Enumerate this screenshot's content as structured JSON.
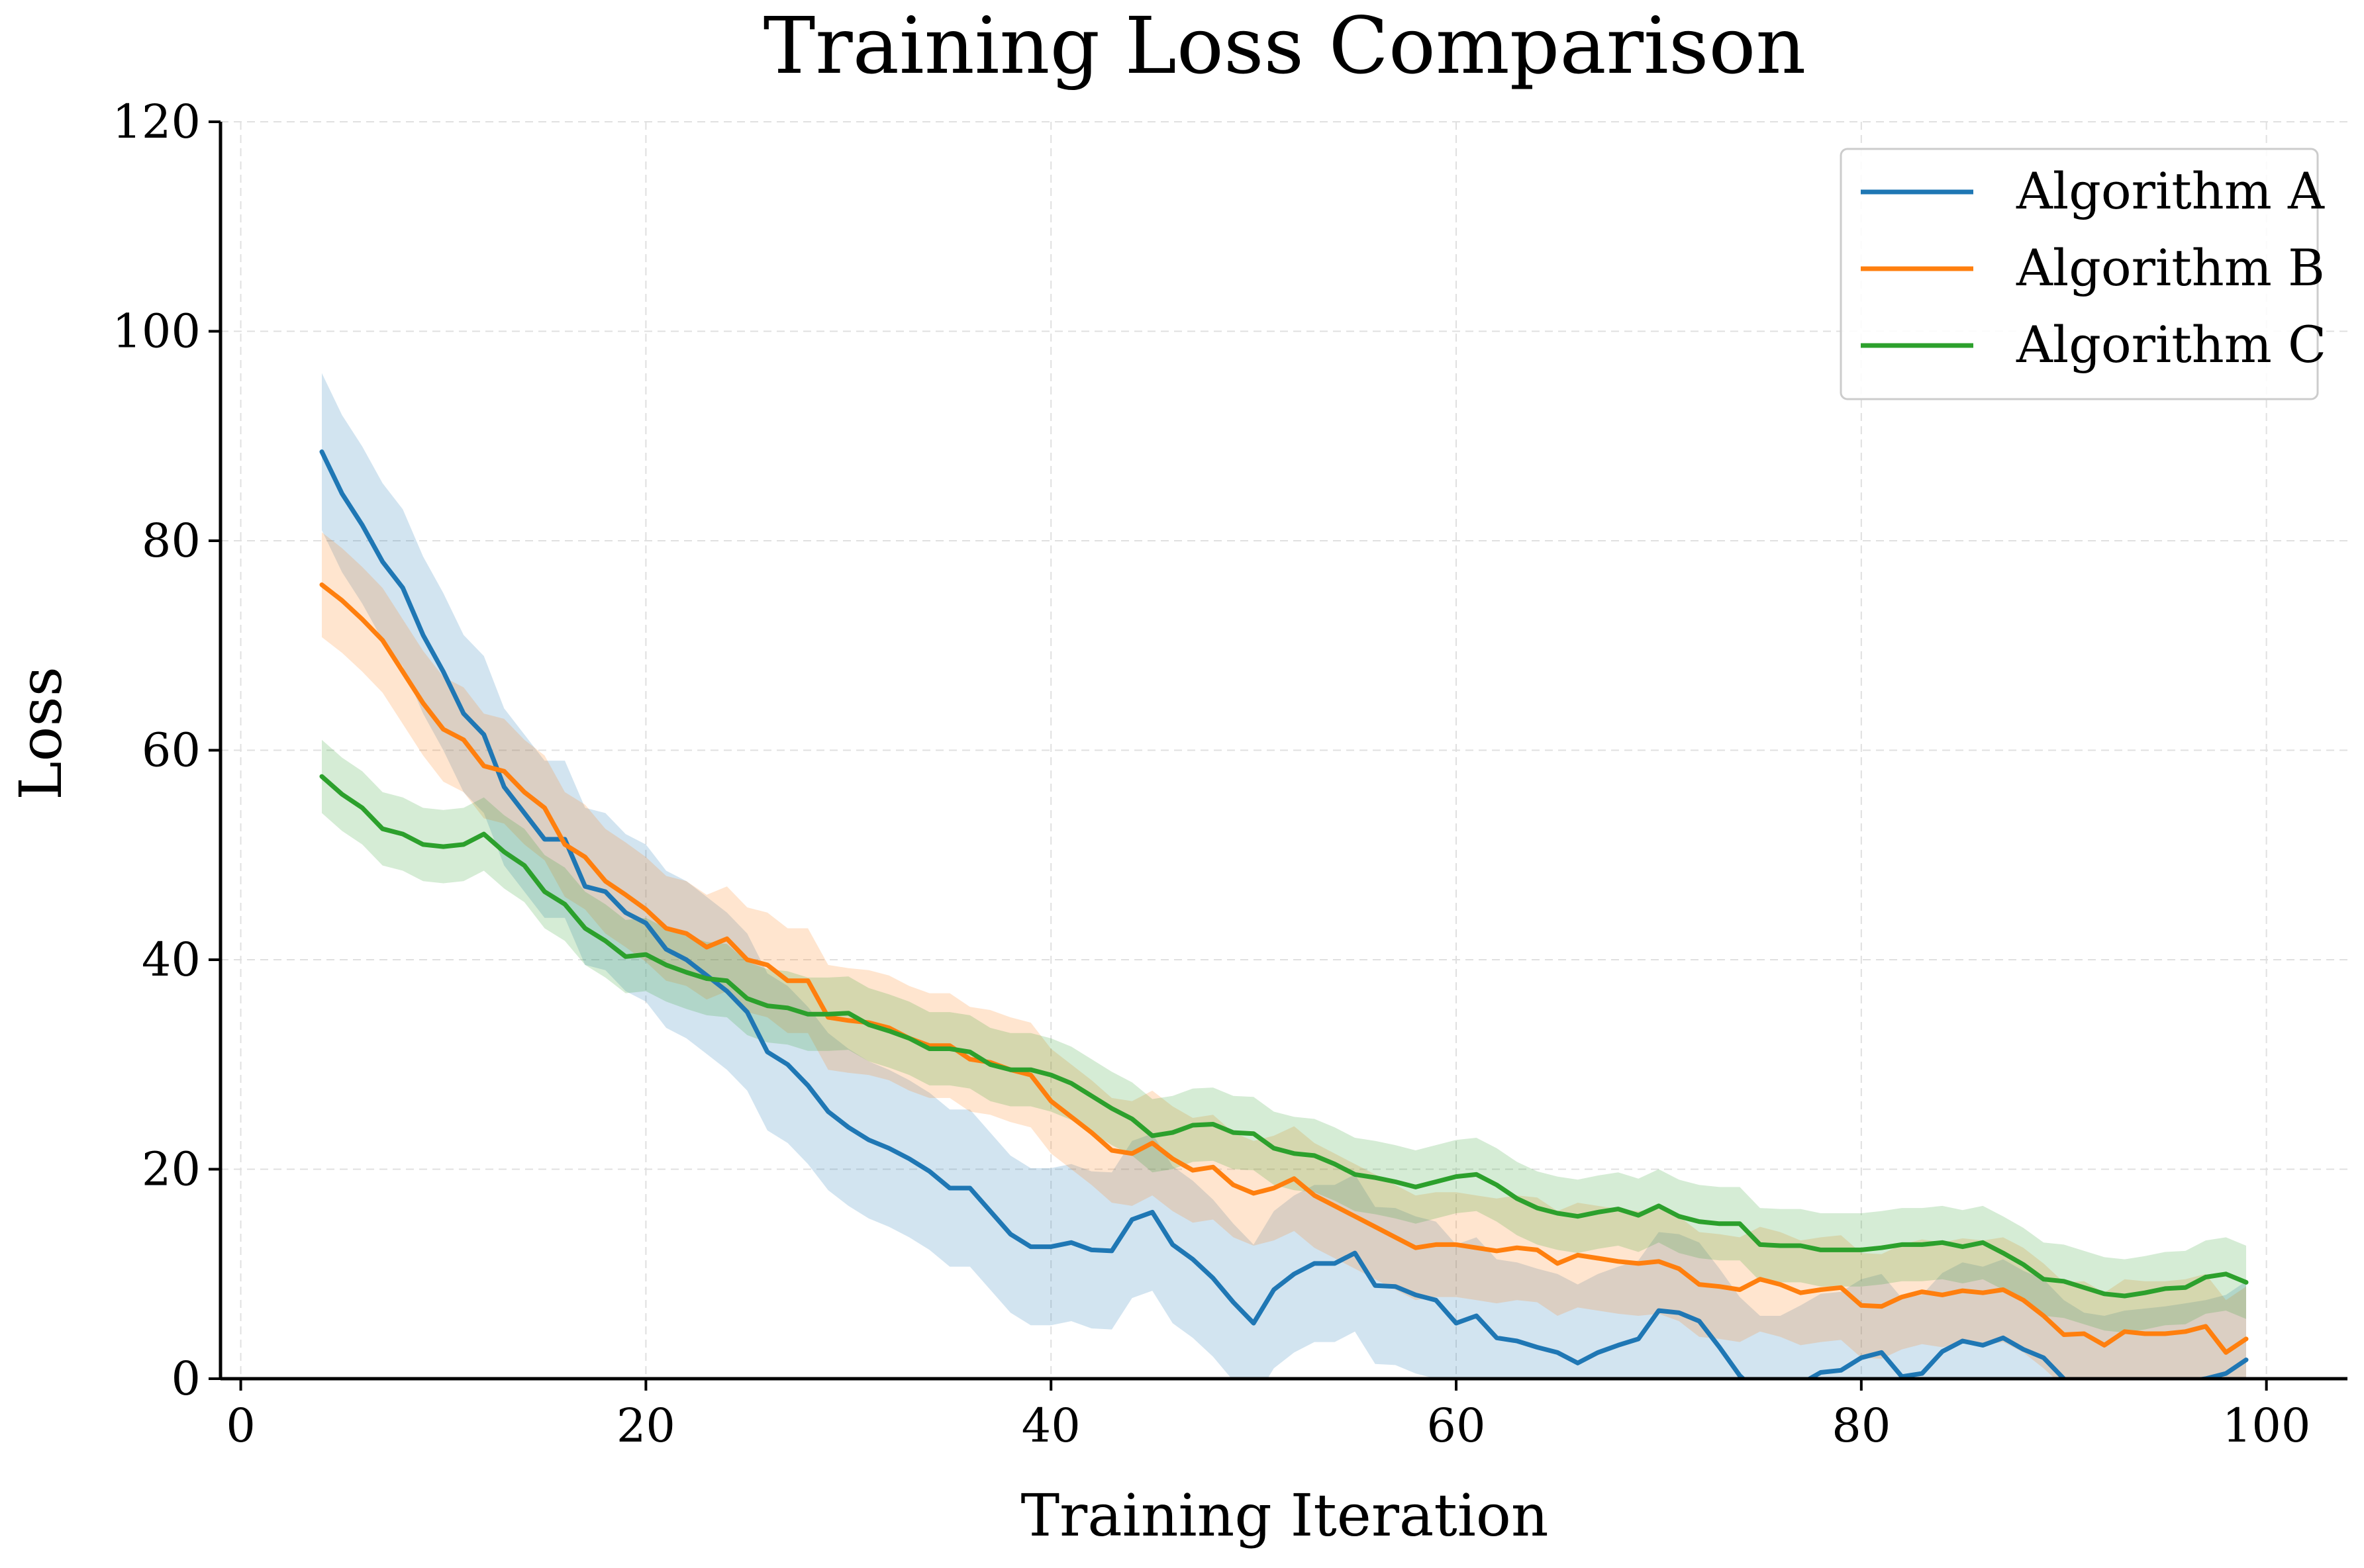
{
  "chart_data": {
    "type": "line",
    "title": "Training Loss Comparison",
    "xlabel": "Training Iteration",
    "ylabel": "Loss",
    "xlim": [
      -1,
      104
    ],
    "ylim": [
      0,
      120
    ],
    "xticks": [
      0,
      20,
      40,
      60,
      80,
      100
    ],
    "yticks": [
      0,
      20,
      40,
      60,
      80,
      100,
      120
    ],
    "grid": true,
    "legend_position": "upper right",
    "x": [
      4,
      5,
      6,
      7,
      8,
      9,
      10,
      11,
      12,
      13,
      14,
      15,
      16,
      17,
      18,
      19,
      20,
      21,
      22,
      23,
      24,
      25,
      26,
      27,
      28,
      29,
      30,
      31,
      32,
      33,
      34,
      35,
      36,
      37,
      38,
      39,
      40,
      41,
      42,
      43,
      44,
      45,
      46,
      47,
      48,
      49,
      50,
      51,
      52,
      53,
      54,
      55,
      56,
      57,
      58,
      59,
      60,
      61,
      62,
      63,
      64,
      65,
      66,
      67,
      68,
      69,
      70,
      71,
      72,
      73,
      74,
      75,
      76,
      77,
      78,
      79,
      80,
      81,
      82,
      83,
      84,
      85,
      86,
      87,
      88,
      89,
      90,
      91,
      92,
      93,
      94,
      95,
      96,
      97,
      98,
      99
    ],
    "series": [
      {
        "name": "Algorithm A",
        "color": "#1f77b4",
        "band_width": 7.5,
        "values": [
          88.5,
          84.5,
          81.5,
          78.0,
          75.5,
          71.0,
          67.5,
          63.5,
          61.5,
          56.5,
          54.0,
          51.5,
          51.5,
          47.0,
          46.5,
          44.5,
          43.5,
          41.0,
          40.0,
          38.5,
          37.0,
          35.0,
          31.2,
          30.0,
          28.0,
          25.5,
          24.0,
          22.8,
          22.0,
          21.0,
          19.8,
          18.2,
          18.2,
          16.0,
          13.8,
          12.6,
          12.6,
          13.0,
          12.3,
          12.2,
          15.2,
          15.9,
          12.8,
          11.4,
          9.6,
          7.3,
          5.3,
          8.5,
          10.0,
          11.0,
          11.0,
          12.0,
          8.9,
          8.8,
          8.0,
          7.5,
          5.3,
          6.0,
          3.9,
          3.6,
          3.0,
          2.5,
          1.5,
          2.5,
          3.2,
          3.8,
          6.5,
          6.3,
          5.5,
          3.0,
          0.3,
          -1.5,
          -1.5,
          -0.5,
          0.6,
          0.8,
          2.0,
          2.5,
          0.2,
          0.5,
          2.6,
          3.6,
          3.2,
          3.9,
          2.8,
          2.0,
          0.0,
          -1.2,
          -1.5,
          -1.0,
          -0.8,
          -0.6,
          -0.3,
          0.0,
          0.5,
          1.8
        ]
      },
      {
        "name": "Algorithm B",
        "color": "#ff7f0e",
        "band_width": 5,
        "values": [
          75.8,
          74.3,
          72.5,
          70.5,
          67.5,
          64.5,
          62.0,
          61.0,
          58.5,
          58.0,
          56.0,
          54.5,
          51.0,
          49.8,
          47.5,
          46.2,
          44.8,
          43.0,
          42.5,
          41.2,
          42.0,
          40.0,
          39.5,
          38.0,
          38.0,
          34.5,
          34.2,
          34.0,
          33.5,
          32.5,
          31.8,
          31.8,
          30.5,
          30.2,
          29.5,
          29.0,
          26.5,
          25.0,
          23.5,
          21.8,
          21.5,
          22.5,
          21.0,
          19.9,
          20.2,
          18.5,
          17.7,
          18.2,
          19.1,
          17.5,
          16.5,
          15.5,
          14.5,
          13.5,
          12.5,
          12.8,
          12.8,
          12.5,
          12.2,
          12.5,
          12.3,
          11.0,
          11.8,
          11.5,
          11.2,
          11.0,
          11.2,
          10.5,
          9.0,
          8.8,
          8.5,
          9.5,
          9.0,
          8.2,
          8.5,
          8.7,
          7.0,
          6.9,
          7.8,
          8.3,
          8.0,
          8.4,
          8.2,
          8.5,
          7.5,
          6.0,
          4.2,
          4.3,
          3.2,
          4.5,
          4.3,
          4.3,
          4.5,
          5.0,
          2.5,
          3.8
        ]
      },
      {
        "name": "Algorithm C",
        "color": "#2ca02c",
        "band_width": 3.5,
        "values": [
          57.5,
          55.8,
          54.5,
          52.5,
          52.0,
          51.0,
          50.8,
          51.0,
          52.0,
          50.3,
          49.0,
          46.5,
          45.3,
          43.0,
          41.8,
          40.3,
          40.5,
          39.5,
          38.8,
          38.2,
          38.0,
          36.3,
          35.6,
          35.4,
          34.8,
          34.8,
          34.9,
          33.8,
          33.2,
          32.5,
          31.5,
          31.5,
          31.2,
          30.0,
          29.5,
          29.5,
          29.0,
          28.2,
          27.0,
          25.8,
          24.8,
          23.2,
          23.5,
          24.2,
          24.3,
          23.5,
          23.4,
          22.0,
          21.5,
          21.3,
          20.5,
          19.5,
          19.2,
          18.8,
          18.3,
          18.8,
          19.3,
          19.5,
          18.5,
          17.2,
          16.3,
          15.8,
          15.5,
          15.9,
          16.2,
          15.6,
          16.5,
          15.5,
          15.0,
          14.8,
          14.8,
          12.8,
          12.7,
          12.7,
          12.3,
          12.3,
          12.3,
          12.5,
          12.8,
          12.8,
          13.0,
          12.6,
          13.0,
          12.0,
          10.9,
          9.5,
          9.3,
          8.7,
          8.1,
          7.9,
          8.2,
          8.6,
          8.7,
          9.7,
          10.0,
          9.2
        ]
      }
    ]
  }
}
